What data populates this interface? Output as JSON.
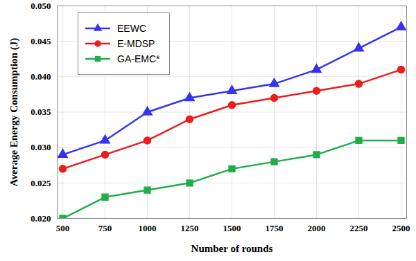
{
  "chart_data": {
    "type": "line",
    "x_label": "Number of rounds",
    "y_label": "Average Energy Consumption (J)",
    "categories": [
      "500",
      "750",
      "1000",
      "1250",
      "1500",
      "1750",
      "2000",
      "2250",
      "2500"
    ],
    "series": [
      {
        "name": "EEWC",
        "color": "#3535ee",
        "marker": "triangle",
        "values": [
          0.029,
          0.031,
          0.035,
          0.037,
          0.038,
          0.039,
          0.041,
          0.044,
          0.047
        ]
      },
      {
        "name": "E-MDSP",
        "color": "#ee1c1c",
        "marker": "circle",
        "values": [
          0.027,
          0.029,
          0.031,
          0.034,
          0.036,
          0.037,
          0.038,
          0.039,
          0.041
        ]
      },
      {
        "name": "GA-EMC*",
        "color": "#1fae48",
        "marker": "square",
        "values": [
          0.02,
          0.023,
          0.024,
          0.025,
          0.027,
          0.028,
          0.029,
          0.031,
          0.031
        ]
      }
    ],
    "ylim": [
      0.02,
      0.05
    ],
    "yticks": [
      0.02,
      0.025,
      0.03,
      0.035,
      0.04,
      0.045,
      0.05
    ],
    "grid": true,
    "legend": "top-left"
  }
}
